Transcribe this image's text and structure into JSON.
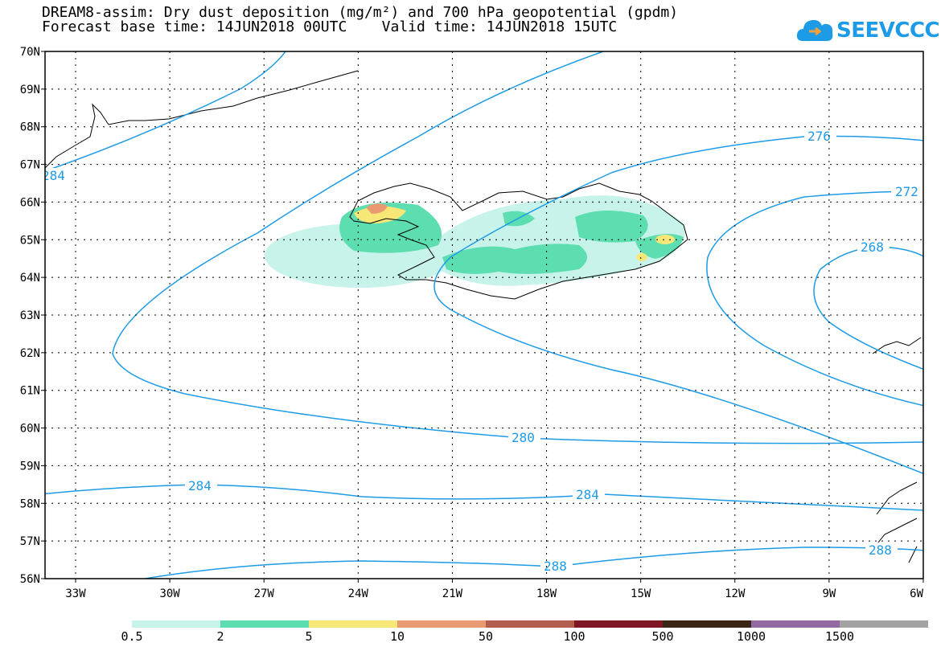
{
  "title_line1": "DREAM8-assim: Dry dust deposition (mg/m²) and 700 hPa geopotential (gpdm)",
  "title_line2": "Forecast base time: 14JUN2018 00UTC    Valid time: 14JUN2018 15UTC",
  "logo_text": "SEEVCCC",
  "lat_labels": [
    "70N",
    "69N",
    "68N",
    "67N",
    "66N",
    "65N",
    "64N",
    "63N",
    "62N",
    "61N",
    "60N",
    "59N",
    "58N",
    "57N",
    "56N"
  ],
  "lon_labels": [
    "33W",
    "30W",
    "27W",
    "24W",
    "21W",
    "18W",
    "15W",
    "12W",
    "9W",
    "6W"
  ],
  "contour_labels": [
    "276",
    "272",
    "268",
    "280",
    "284",
    "284",
    "288",
    "288",
    "284"
  ],
  "colorbar": {
    "colors": [
      "#c7f3ea",
      "#5ddeb0",
      "#f6e776",
      "#ea9a72",
      "#b25e4c",
      "#7e1626",
      "#3a2617",
      "#946aa3",
      "#a3a3a3"
    ],
    "labels": [
      "0.5",
      "2",
      "5",
      "10",
      "50",
      "100",
      "500",
      "1000",
      "1500"
    ]
  },
  "contour_color": "#1d9be6"
}
